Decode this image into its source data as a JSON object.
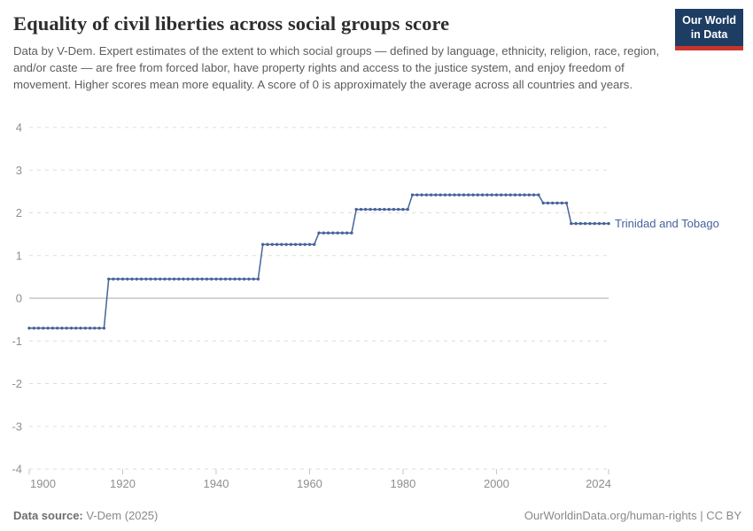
{
  "header": {
    "title": "Equality of civil liberties across social groups score",
    "subtitle": "Data by V-Dem. Expert estimates of the extent to which social groups — defined by language, ethnicity, religion, race, region, and/or caste — are free from forced labor, have property rights and access to the justice system, and enjoy freedom of movement. Higher scores mean more equality. A score of 0 is approximately the average across all countries and years.",
    "logo": {
      "line1": "Our World",
      "line2": "in Data",
      "bg_color": "#1d3d63",
      "accent_color": "#c9342c"
    }
  },
  "footer": {
    "source_label": "Data source:",
    "source_value": " V-Dem (2025)",
    "credit": "OurWorldinData.org/human-rights | CC BY"
  },
  "chart_data": {
    "type": "line",
    "title": "Equality of civil liberties across social groups score",
    "entity": "Trinidad and Tobago",
    "xlabel": "",
    "ylabel": "",
    "xlim": [
      1900,
      2024
    ],
    "ylim": [
      -4,
      4
    ],
    "x_ticks": [
      1900,
      1920,
      1940,
      1960,
      1980,
      2000,
      2024
    ],
    "y_ticks": [
      4,
      3,
      2,
      1,
      0,
      -1,
      -2,
      -3,
      -4
    ],
    "grid": "horizontal dashed gridlines, solid line at 0",
    "legend_position": "label at end of line",
    "line_color": "#46639a",
    "axis_label_color": "#8f8f8f",
    "series": [
      {
        "name": "Trinidad and Tobago",
        "step_segments": [
          {
            "from": 1900,
            "to": 1916,
            "value": -0.7
          },
          {
            "from": 1917,
            "to": 1949,
            "value": 0.45
          },
          {
            "from": 1950,
            "to": 1961,
            "value": 1.26
          },
          {
            "from": 1962,
            "to": 1969,
            "value": 1.53
          },
          {
            "from": 1970,
            "to": 1981,
            "value": 2.08
          },
          {
            "from": 1982,
            "to": 2009,
            "value": 2.42
          },
          {
            "from": 2010,
            "to": 2015,
            "value": 2.23
          },
          {
            "from": 2016,
            "to": 2024,
            "value": 1.75
          }
        ]
      }
    ]
  }
}
